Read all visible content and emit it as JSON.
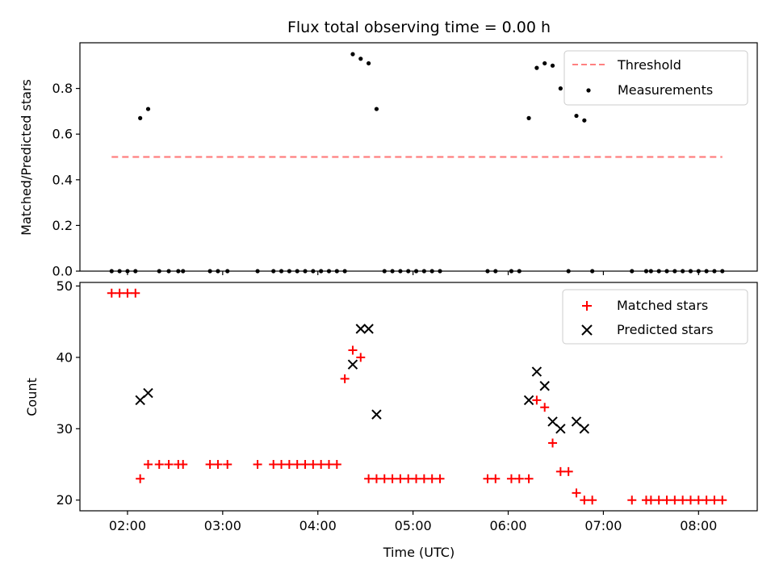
{
  "chart_data": [
    {
      "type": "scatter",
      "title": "Flux total observing time = 0.00 h",
      "xlabel": "",
      "ylabel": "Matched/Predicted stars",
      "xlim": [
        "01:30",
        "08:37"
      ],
      "ylim": [
        0,
        1
      ],
      "yticks": [
        "0.0",
        "0.2",
        "0.4",
        "0.6",
        "0.8"
      ],
      "xticks": [
        "02:00",
        "03:00",
        "04:00",
        "05:00",
        "06:00",
        "07:00",
        "08:00"
      ],
      "legend": {
        "position": "top-right",
        "entries": [
          "Threshold",
          "Measurements"
        ]
      },
      "threshold": {
        "name": "Threshold",
        "value": 0.5,
        "x_start": "01:50",
        "x_end": "08:15",
        "color": "#ff8080",
        "style": "dashed"
      },
      "series": [
        {
          "name": "Measurements",
          "color": "#000000",
          "marker": "dot",
          "x": [
            "01:50",
            "01:55",
            "02:00",
            "02:05",
            "02:08",
            "02:13",
            "02:20",
            "02:26",
            "02:32",
            "02:35",
            "02:52",
            "02:57",
            "03:03",
            "03:22",
            "03:32",
            "03:37",
            "03:42",
            "03:47",
            "03:52",
            "03:57",
            "04:02",
            "04:07",
            "04:12",
            "04:17",
            "04:22",
            "04:27",
            "04:32",
            "04:37",
            "04:42",
            "04:47",
            "04:52",
            "04:57",
            "05:02",
            "05:07",
            "05:12",
            "05:17",
            "05:47",
            "05:52",
            "06:02",
            "06:07",
            "06:13",
            "06:18",
            "06:23",
            "06:28",
            "06:33",
            "06:38",
            "06:43",
            "06:48",
            "06:53",
            "07:18",
            "07:27",
            "07:30",
            "07:35",
            "07:40",
            "07:45",
            "07:50",
            "07:55",
            "08:00",
            "08:05",
            "08:10",
            "08:15"
          ],
          "y": [
            0,
            0,
            0,
            0,
            0.67,
            0.71,
            0,
            0,
            0,
            0,
            0,
            0,
            0,
            0,
            0,
            0,
            0,
            0,
            0,
            0,
            0,
            0,
            0,
            0,
            0.95,
            0.93,
            0.91,
            0.71,
            0,
            0,
            0,
            0,
            0,
            0,
            0,
            0,
            0,
            0,
            0,
            0,
            0.67,
            0.89,
            0.91,
            0.9,
            0.8,
            0,
            0.68,
            0.66,
            0,
            0,
            0,
            0,
            0,
            0,
            0,
            0,
            0,
            0,
            0,
            0,
            0
          ]
        }
      ]
    },
    {
      "type": "scatter",
      "title": "",
      "xlabel": "Time (UTC)",
      "ylabel": "Count",
      "xlim": [
        "01:30",
        "08:37"
      ],
      "ylim": [
        18.5,
        50.5
      ],
      "yticks": [
        "20",
        "30",
        "40",
        "50"
      ],
      "xticks": [
        "02:00",
        "03:00",
        "04:00",
        "05:00",
        "06:00",
        "07:00",
        "08:00"
      ],
      "legend": {
        "position": "top-right",
        "entries": [
          "Matched stars",
          "Predicted stars"
        ]
      },
      "series": [
        {
          "name": "Matched stars",
          "color": "#ff0000",
          "marker": "plus",
          "x": [
            "01:50",
            "01:55",
            "02:00",
            "02:05",
            "02:08",
            "02:13",
            "02:20",
            "02:26",
            "02:32",
            "02:35",
            "02:52",
            "02:57",
            "03:03",
            "03:22",
            "03:32",
            "03:37",
            "03:42",
            "03:47",
            "03:52",
            "03:57",
            "04:02",
            "04:07",
            "04:12",
            "04:17",
            "04:22",
            "04:27",
            "04:32",
            "04:37",
            "04:42",
            "04:47",
            "04:52",
            "04:57",
            "05:02",
            "05:07",
            "05:12",
            "05:17",
            "05:47",
            "05:52",
            "06:02",
            "06:07",
            "06:13",
            "06:18",
            "06:23",
            "06:28",
            "06:33",
            "06:38",
            "06:43",
            "06:48",
            "06:53",
            "07:18",
            "07:27",
            "07:30",
            "07:35",
            "07:40",
            "07:45",
            "07:50",
            "07:55",
            "08:00",
            "08:05",
            "08:10",
            "08:15"
          ],
          "y": [
            49,
            49,
            49,
            49,
            23,
            25,
            25,
            25,
            25,
            25,
            25,
            25,
            25,
            25,
            25,
            25,
            25,
            25,
            25,
            25,
            25,
            25,
            25,
            37,
            41,
            40,
            23,
            23,
            23,
            23,
            23,
            23,
            23,
            23,
            23,
            23,
            23,
            23,
            23,
            23,
            23,
            34,
            33,
            28,
            24,
            24,
            21,
            20,
            20,
            20,
            20,
            20,
            20,
            20,
            20,
            20,
            20,
            20,
            20,
            20,
            20
          ]
        },
        {
          "name": "Predicted stars",
          "color": "#000000",
          "marker": "x",
          "x": [
            "02:08",
            "02:13",
            "04:22",
            "04:27",
            "04:32",
            "04:37",
            "06:13",
            "06:18",
            "06:23",
            "06:28",
            "06:33",
            "06:43",
            "06:48"
          ],
          "y": [
            34,
            35,
            39,
            44,
            44,
            32,
            34,
            38,
            36,
            31,
            30,
            31,
            30
          ]
        }
      ]
    }
  ]
}
